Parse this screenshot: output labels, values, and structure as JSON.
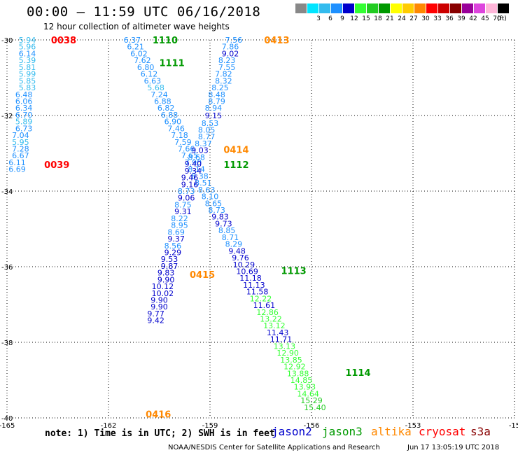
{
  "header": {
    "title": "00:00 – 11:59 UTC 06/16/2018",
    "subtitle": "12 hour collection of altimeter wave heights"
  },
  "colorbar": {
    "unit_label": "(ft)",
    "bins": [
      {
        "label": "",
        "color": "#888888"
      },
      {
        "label": "3",
        "color": "#00e5ff"
      },
      {
        "label": "6",
        "color": "#33bbee"
      },
      {
        "label": "9",
        "color": "#1e90ff"
      },
      {
        "label": "12",
        "color": "#0000cc"
      },
      {
        "label": "15",
        "color": "#33ff33"
      },
      {
        "label": "18",
        "color": "#22cc22"
      },
      {
        "label": "21",
        "color": "#009900"
      },
      {
        "label": "24",
        "color": "#ffff00"
      },
      {
        "label": "27",
        "color": "#ffcc00"
      },
      {
        "label": "30",
        "color": "#ff8800"
      },
      {
        "label": "33",
        "color": "#ff0000"
      },
      {
        "label": "36",
        "color": "#cc0000"
      },
      {
        "label": "39",
        "color": "#880000"
      },
      {
        "label": "42",
        "color": "#990099"
      },
      {
        "label": "45",
        "color": "#dd44dd"
      },
      {
        "label": "70",
        "color": "#ffb6d9"
      },
      {
        "label": "",
        "color": "#000000"
      }
    ]
  },
  "legend": [
    {
      "name": "jason2",
      "color": "#0000cc"
    },
    {
      "name": "jason3",
      "color": "#009900"
    },
    {
      "name": "altika",
      "color": "#ff8800"
    },
    {
      "name": "cryosat",
      "color": "#ff0000"
    },
    {
      "name": "s3a",
      "color": "#880000"
    }
  ],
  "note": "note: 1) Time is in UTC; 2) SWH is in feet",
  "credit": "NOAA/NESDIS Center for Satellite Applications and Research",
  "timestamp": "Jun 17 13:05:19 UTC 2018",
  "chart_data": {
    "type": "scatter",
    "xlabel": "",
    "ylabel": "",
    "xlim": [
      -165,
      -150
    ],
    "ylim": [
      -40,
      -30
    ],
    "x_ticks": [
      "-165",
      "-162",
      "-159",
      "-156",
      "-153",
      "-15"
    ],
    "y_ticks": [
      "-30",
      "-32",
      "-34",
      "-36",
      "-38",
      "-40"
    ],
    "grid": true,
    "colors": {
      "3-6": "#33bbee",
      "6-9": "#1e90ff",
      "9-12": "#0000cc",
      "12-15": "#33ff33",
      "15-18": "#22cc22"
    },
    "pass_labels": [
      {
        "text": "0038",
        "satellite": "cryosat",
        "x": -163.7,
        "y": -30.0
      },
      {
        "text": "1110",
        "satellite": "jason3",
        "x": -160.7,
        "y": -30.0
      },
      {
        "text": "0413",
        "satellite": "altika",
        "x": -157.4,
        "y": -30.0
      },
      {
        "text": "1111",
        "satellite": "jason3",
        "x": -160.5,
        "y": -30.6
      },
      {
        "text": "0414",
        "satellite": "altika",
        "x": -158.6,
        "y": -32.9
      },
      {
        "text": "0039",
        "satellite": "cryosat",
        "x": -163.9,
        "y": -33.3
      },
      {
        "text": "1112",
        "satellite": "jason3",
        "x": -158.6,
        "y": -33.3
      },
      {
        "text": "1113",
        "satellite": "jason3",
        "x": -156.9,
        "y": -36.1
      },
      {
        "text": "0415",
        "satellite": "altika",
        "x": -159.6,
        "y": -36.2
      },
      {
        "text": "1114",
        "satellite": "jason3",
        "x": -155.0,
        "y": -38.8
      },
      {
        "text": "0416",
        "satellite": "altika",
        "x": -160.9,
        "y": -39.9
      }
    ],
    "series": [
      {
        "name": "cryosat",
        "points": [
          {
            "x": -164.4,
            "y": -30.0,
            "v": "5.94"
          },
          {
            "x": -164.4,
            "y": -30.18,
            "v": "5.96"
          },
          {
            "x": -164.4,
            "y": -30.36,
            "v": "6.14"
          },
          {
            "x": -164.4,
            "y": -30.54,
            "v": "5.39"
          },
          {
            "x": -164.4,
            "y": -30.72,
            "v": "5.81"
          },
          {
            "x": -164.4,
            "y": -30.9,
            "v": "5.99"
          },
          {
            "x": -164.4,
            "y": -31.08,
            "v": "5.85"
          },
          {
            "x": -164.4,
            "y": -31.26,
            "v": "5.83"
          },
          {
            "x": -164.5,
            "y": -31.44,
            "v": "6.48"
          },
          {
            "x": -164.5,
            "y": -31.62,
            "v": "6.06"
          },
          {
            "x": -164.5,
            "y": -31.8,
            "v": "6.34"
          },
          {
            "x": -164.5,
            "y": -31.98,
            "v": "6.70"
          },
          {
            "x": -164.5,
            "y": -32.16,
            "v": "5.89"
          },
          {
            "x": -164.5,
            "y": -32.34,
            "v": "6.73"
          },
          {
            "x": -164.6,
            "y": -32.52,
            "v": "7.04"
          },
          {
            "x": -164.6,
            "y": -32.7,
            "v": "5.95"
          },
          {
            "x": -164.6,
            "y": -32.88,
            "v": "7.28"
          },
          {
            "x": -164.6,
            "y": -33.06,
            "v": "6.67"
          },
          {
            "x": -164.7,
            "y": -33.24,
            "v": "6.11"
          },
          {
            "x": -164.7,
            "y": -33.42,
            "v": "6.69"
          }
        ]
      },
      {
        "name": "jason3",
        "points": [
          {
            "x": -161.3,
            "y": -30.0,
            "v": "6.37"
          },
          {
            "x": -161.2,
            "y": -30.18,
            "v": "6.21"
          },
          {
            "x": -161.1,
            "y": -30.36,
            "v": "6.02"
          },
          {
            "x": -161.0,
            "y": -30.54,
            "v": "7.62"
          },
          {
            "x": -160.9,
            "y": -30.72,
            "v": "6.80"
          },
          {
            "x": -160.8,
            "y": -30.9,
            "v": "6.12"
          },
          {
            "x": -160.7,
            "y": -31.08,
            "v": "6.63"
          },
          {
            "x": -160.6,
            "y": -31.26,
            "v": "5.68"
          },
          {
            "x": -160.5,
            "y": -31.44,
            "v": "7.24"
          },
          {
            "x": -160.4,
            "y": -31.62,
            "v": "6.88"
          },
          {
            "x": -160.3,
            "y": -31.8,
            "v": "6.82"
          },
          {
            "x": -160.2,
            "y": -31.98,
            "v": "6.88"
          },
          {
            "x": -160.1,
            "y": -32.16,
            "v": "6.90"
          },
          {
            "x": -160.0,
            "y": -32.34,
            "v": "7.46"
          },
          {
            "x": -159.9,
            "y": -32.52,
            "v": "7.18"
          },
          {
            "x": -159.8,
            "y": -32.7,
            "v": "7.59"
          },
          {
            "x": -159.7,
            "y": -32.88,
            "v": "7.66"
          },
          {
            "x": -159.6,
            "y": -33.06,
            "v": "7.65"
          },
          {
            "x": -159.5,
            "y": -33.24,
            "v": "7.90"
          },
          {
            "x": -159.4,
            "y": -33.42,
            "v": "8.14"
          },
          {
            "x": -159.3,
            "y": -33.6,
            "v": "8.38"
          },
          {
            "x": -159.2,
            "y": -33.78,
            "v": "8.51"
          },
          {
            "x": -159.1,
            "y": -33.96,
            "v": "8.63"
          },
          {
            "x": -159.0,
            "y": -34.14,
            "v": "8.10"
          },
          {
            "x": -158.9,
            "y": -34.32,
            "v": "8.65"
          },
          {
            "x": -158.8,
            "y": -34.5,
            "v": "8.73"
          },
          {
            "x": -158.7,
            "y": -34.68,
            "v": "9.83"
          },
          {
            "x": -158.6,
            "y": -34.86,
            "v": "9.73"
          },
          {
            "x": -158.5,
            "y": -35.04,
            "v": "8.85"
          },
          {
            "x": -158.4,
            "y": -35.22,
            "v": "8.71"
          },
          {
            "x": -158.3,
            "y": -35.4,
            "v": "8.29"
          },
          {
            "x": -158.2,
            "y": -35.58,
            "v": "9.48"
          },
          {
            "x": -158.1,
            "y": -35.76,
            "v": "9.76"
          },
          {
            "x": -158.0,
            "y": -35.94,
            "v": "10.29"
          },
          {
            "x": -157.9,
            "y": -36.12,
            "v": "10.69"
          },
          {
            "x": -157.8,
            "y": -36.3,
            "v": "11.18"
          },
          {
            "x": -157.7,
            "y": -36.48,
            "v": "11.13"
          },
          {
            "x": -157.6,
            "y": -36.66,
            "v": "11.58"
          },
          {
            "x": -157.5,
            "y": -36.84,
            "v": "12.22"
          },
          {
            "x": -157.4,
            "y": -37.02,
            "v": "11.61"
          },
          {
            "x": -157.3,
            "y": -37.2,
            "v": "12.86"
          },
          {
            "x": -157.2,
            "y": -37.38,
            "v": "13.22"
          },
          {
            "x": -157.1,
            "y": -37.56,
            "v": "13.12"
          },
          {
            "x": -157.0,
            "y": -37.74,
            "v": "11.43"
          },
          {
            "x": -156.9,
            "y": -37.92,
            "v": "11.71"
          },
          {
            "x": -156.8,
            "y": -38.1,
            "v": "13.13"
          },
          {
            "x": -156.7,
            "y": -38.28,
            "v": "12.90"
          },
          {
            "x": -156.6,
            "y": -38.46,
            "v": "13.85"
          },
          {
            "x": -156.5,
            "y": -38.64,
            "v": "12.92"
          },
          {
            "x": -156.4,
            "y": -38.82,
            "v": "13.88"
          },
          {
            "x": -156.3,
            "y": -39.0,
            "v": "14.85"
          },
          {
            "x": -156.2,
            "y": -39.18,
            "v": "13.93"
          },
          {
            "x": -156.1,
            "y": -39.36,
            "v": "14.64"
          },
          {
            "x": -156.0,
            "y": -39.54,
            "v": "15.29"
          },
          {
            "x": -155.9,
            "y": -39.72,
            "v": "15.40"
          }
        ]
      },
      {
        "name": "altika",
        "points": [
          {
            "x": -158.3,
            "y": -30.0,
            "v": "7.56"
          },
          {
            "x": -158.4,
            "y": -30.18,
            "v": "7.86"
          },
          {
            "x": -158.4,
            "y": -30.36,
            "v": "9.02"
          },
          {
            "x": -158.5,
            "y": -30.54,
            "v": "8.23"
          },
          {
            "x": -158.5,
            "y": -30.72,
            "v": "7.55"
          },
          {
            "x": -158.6,
            "y": -30.9,
            "v": "7.82"
          },
          {
            "x": -158.6,
            "y": -31.08,
            "v": "8.32"
          },
          {
            "x": -158.7,
            "y": -31.26,
            "v": "8.25"
          },
          {
            "x": -158.8,
            "y": -31.44,
            "v": "8.48"
          },
          {
            "x": -158.8,
            "y": -31.62,
            "v": "8.79"
          },
          {
            "x": -158.9,
            "y": -31.8,
            "v": "8.94"
          },
          {
            "x": -158.9,
            "y": -32.0,
            "v": "9.15"
          },
          {
            "x": -159.0,
            "y": -32.2,
            "v": "8.53"
          },
          {
            "x": -159.1,
            "y": -32.38,
            "v": "8.05"
          },
          {
            "x": -159.1,
            "y": -32.56,
            "v": "8.77"
          },
          {
            "x": -159.2,
            "y": -32.74,
            "v": "8.37"
          },
          {
            "x": -159.3,
            "y": -32.92,
            "v": "9.03"
          },
          {
            "x": -159.4,
            "y": -33.1,
            "v": "8.68"
          },
          {
            "x": -159.5,
            "y": -33.28,
            "v": "9.40"
          },
          {
            "x": -159.5,
            "y": -33.46,
            "v": "9.34"
          },
          {
            "x": -159.6,
            "y": -33.64,
            "v": "9.46"
          },
          {
            "x": -159.6,
            "y": -33.82,
            "v": "9.16"
          },
          {
            "x": -159.7,
            "y": -34.0,
            "v": "8.73"
          },
          {
            "x": -159.7,
            "y": -34.18,
            "v": "9.06"
          },
          {
            "x": -159.8,
            "y": -34.36,
            "v": "8.75"
          },
          {
            "x": -159.8,
            "y": -34.54,
            "v": "9.31"
          },
          {
            "x": -159.9,
            "y": -34.72,
            "v": "8.22"
          },
          {
            "x": -159.9,
            "y": -34.9,
            "v": "8.95"
          },
          {
            "x": -160.0,
            "y": -35.08,
            "v": "8.69"
          },
          {
            "x": -160.0,
            "y": -35.26,
            "v": "9.37"
          },
          {
            "x": -160.1,
            "y": -35.44,
            "v": "8.56"
          },
          {
            "x": -160.1,
            "y": -35.62,
            "v": "9.29"
          },
          {
            "x": -160.2,
            "y": -35.8,
            "v": "9.53"
          },
          {
            "x": -160.2,
            "y": -35.98,
            "v": "9.87"
          },
          {
            "x": -160.3,
            "y": -36.16,
            "v": "9.83"
          },
          {
            "x": -160.3,
            "y": -36.34,
            "v": "9.90"
          },
          {
            "x": -160.4,
            "y": -36.52,
            "v": "10.12"
          },
          {
            "x": -160.4,
            "y": -36.7,
            "v": "10.02"
          },
          {
            "x": -160.5,
            "y": -36.88,
            "v": "9.90"
          },
          {
            "x": -160.5,
            "y": -37.06,
            "v": "9.90"
          },
          {
            "x": -160.6,
            "y": -37.24,
            "v": "9.77"
          },
          {
            "x": -160.6,
            "y": -37.42,
            "v": "9.42"
          }
        ]
      }
    ]
  }
}
